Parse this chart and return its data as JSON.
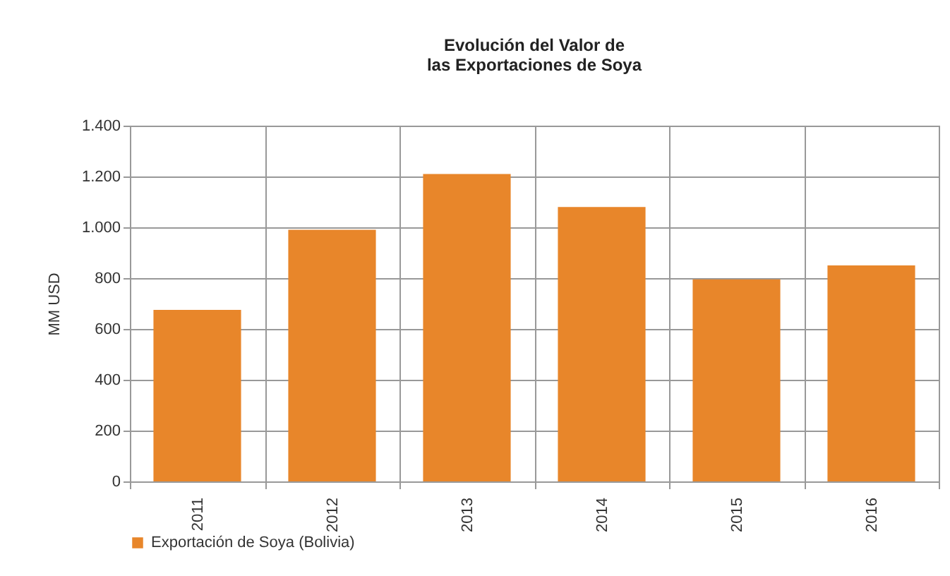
{
  "chart_data": {
    "type": "bar",
    "title": "Evolución del Valor de\nlas Exportaciones de Soya",
    "ylabel": "MM USD",
    "categories": [
      "2011",
      "2012",
      "2013",
      "2014",
      "2015",
      "2016"
    ],
    "series": [
      {
        "name": "Exportación de Soya (Bolivia)",
        "color": "#e8862a",
        "values": [
          675,
          990,
          1210,
          1080,
          795,
          850
        ]
      }
    ],
    "ylim": [
      0,
      1400
    ],
    "yticks": [
      0,
      200,
      400,
      600,
      800,
      {
        "value": 1000,
        "label": "1.000"
      },
      {
        "value": 1200,
        "label": "1.200"
      },
      {
        "value": 1400,
        "label": "1.400"
      }
    ],
    "grid": true,
    "legend": "bottom"
  }
}
